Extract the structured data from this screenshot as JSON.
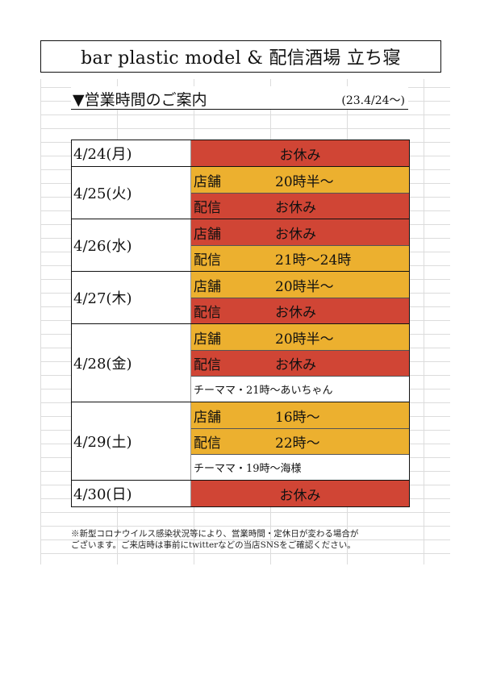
{
  "title": "bar plastic model & 配信酒場 立ち寝",
  "heading": {
    "text": "▼営業時間のご案内",
    "date": "(23.4/24〜)"
  },
  "colors": {
    "closed": "#d04535",
    "open": "#ecb02f"
  },
  "schedule": [
    {
      "date": "4/24(月)",
      "rows": [
        {
          "type": "full",
          "value": "お休み",
          "color": "red"
        }
      ]
    },
    {
      "date": "4/25(火)",
      "rows": [
        {
          "label": "店舗",
          "value": "20時半〜",
          "color": "yellow"
        },
        {
          "label": "配信",
          "value": "お休み",
          "color": "red"
        }
      ]
    },
    {
      "date": "4/26(水)",
      "rows": [
        {
          "label": "店舗",
          "value": "お休み",
          "color": "red"
        },
        {
          "label": "配信",
          "value": "21時〜24時",
          "color": "yellow"
        }
      ]
    },
    {
      "date": "4/27(木)",
      "rows": [
        {
          "label": "店舗",
          "value": "20時半〜",
          "color": "yellow"
        },
        {
          "label": "配信",
          "value": "お休み",
          "color": "red"
        }
      ]
    },
    {
      "date": "4/28(金)",
      "rows": [
        {
          "label": "店舗",
          "value": "20時半〜",
          "color": "yellow"
        },
        {
          "label": "配信",
          "value": "お休み",
          "color": "red"
        },
        {
          "type": "note",
          "value": "チーママ・21時〜あいちゃん"
        }
      ]
    },
    {
      "date": "4/29(土)",
      "rows": [
        {
          "label": "店舗",
          "value": "16時〜",
          "color": "yellow"
        },
        {
          "label": "配信",
          "value": "22時〜",
          "color": "yellow"
        },
        {
          "type": "note",
          "value": "チーママ・19時〜海様"
        }
      ]
    },
    {
      "date": "4/30(日)",
      "rows": [
        {
          "type": "full",
          "value": "お休み",
          "color": "red"
        }
      ]
    }
  ],
  "footnote": [
    "※新型コロナウイルス感染状況等により、営業時間・定休日が変わる場合が",
    "ございます。ご来店時は事前にtwitterなどの当店SNSをご確認ください。"
  ]
}
